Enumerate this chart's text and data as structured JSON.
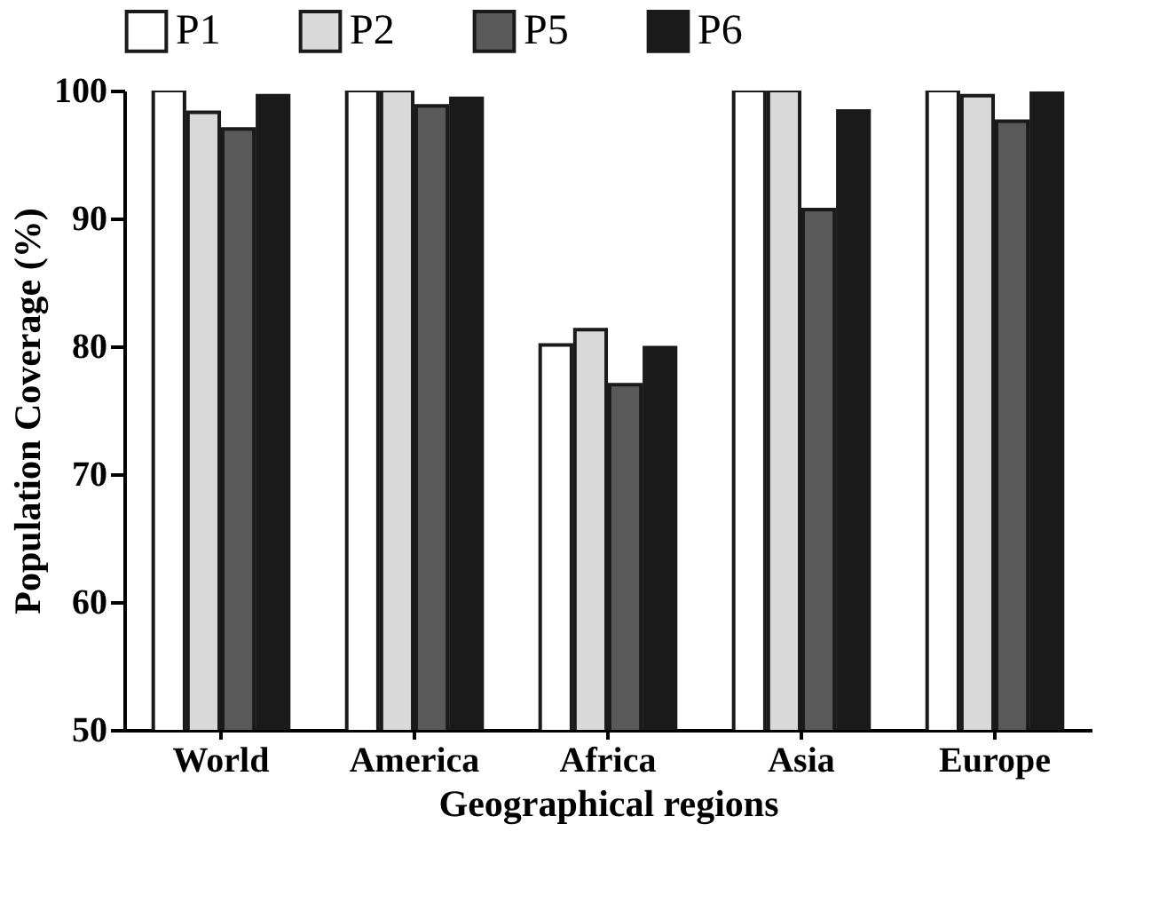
{
  "chart_data": {
    "type": "bar",
    "xlabel": "Geographical regions",
    "ylabel": "Population Coverage (%)",
    "categories": [
      "World",
      "America",
      "Africa",
      "Asia",
      "Europe"
    ],
    "series": [
      {
        "name": "P1",
        "color": "#ffffff",
        "values": [
          100,
          100,
          80.1,
          100,
          100
        ]
      },
      {
        "name": "P2",
        "color": "#d9d9d9",
        "values": [
          98.3,
          100,
          81.3,
          100,
          99.6
        ]
      },
      {
        "name": "P5",
        "color": "#595959",
        "values": [
          97.0,
          98.8,
          77.0,
          90.7,
          97.6
        ]
      },
      {
        "name": "P6",
        "color": "#1a1a1a",
        "values": [
          99.6,
          99.4,
          79.9,
          98.4,
          99.8
        ]
      }
    ],
    "ylim": [
      50,
      100
    ],
    "yticks": [
      50,
      60,
      70,
      80,
      90,
      100
    ],
    "grid": false,
    "legend": "top"
  }
}
